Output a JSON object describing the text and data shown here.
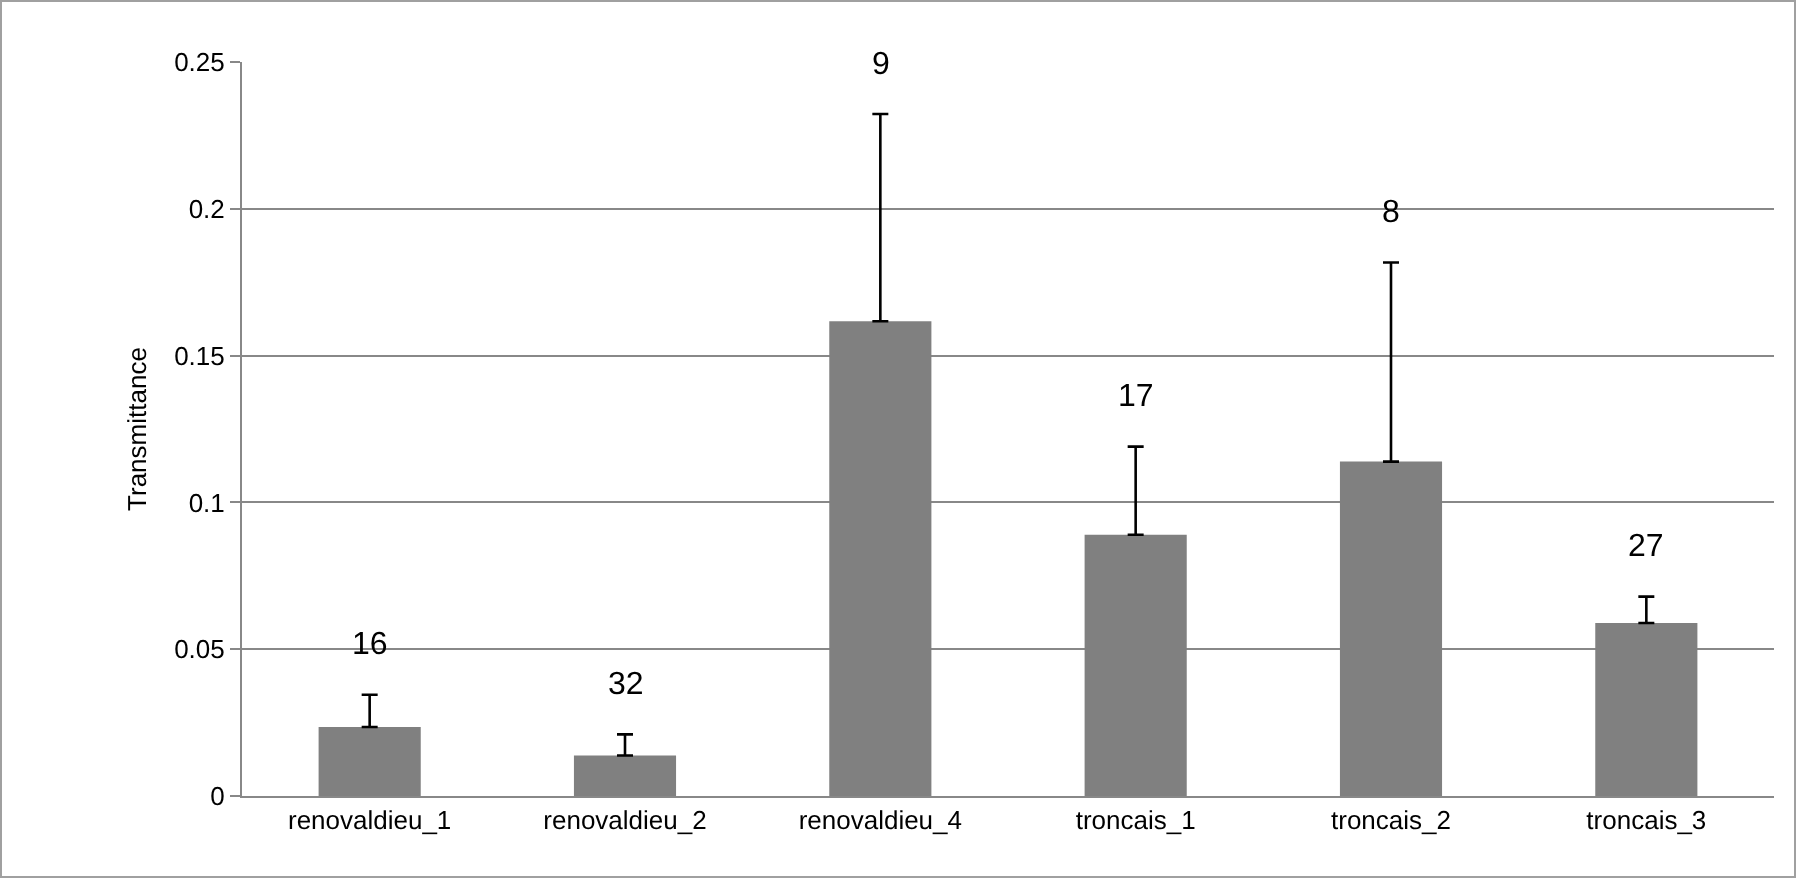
{
  "chart_data": {
    "type": "bar",
    "ylabel": "Transmittance",
    "categories": [
      "renovaldieu_1",
      "renovaldieu_2",
      "renovaldieu_4",
      "troncais_1",
      "troncais_2",
      "troncais_3"
    ],
    "series": [
      {
        "color": "#808080",
        "values": [
          0.0235,
          0.0138,
          0.1617,
          0.089,
          0.1139,
          0.0589
        ],
        "errors": [
          [
            0.0235,
            0.0345
          ],
          [
            0.0138,
            0.021
          ],
          [
            0.1617,
            0.2323
          ],
          [
            0.089,
            0.119
          ],
          [
            0.1139,
            0.1817
          ],
          [
            0.0589,
            0.0679
          ]
        ]
      }
    ],
    "ylim": [
      0,
      0.25
    ],
    "yticks": [
      0,
      0.05,
      0.1,
      0.15,
      0.2,
      0.25
    ],
    "grid": "y",
    "annotations": [
      {
        "text": "16",
        "x": "renovaldieu_1",
        "y": 0.0345
      },
      {
        "text": "32",
        "x": "renovaldieu_2",
        "y": 0.021
      },
      {
        "text": "9",
        "x": "renovaldieu_4",
        "y": 0.2323
      },
      {
        "text": "17",
        "x": "troncais_1",
        "y": 0.119
      },
      {
        "text": "8",
        "x": "troncais_2",
        "y": 0.1817
      },
      {
        "text": "27",
        "x": "troncais_3",
        "y": 0.0679
      }
    ]
  }
}
